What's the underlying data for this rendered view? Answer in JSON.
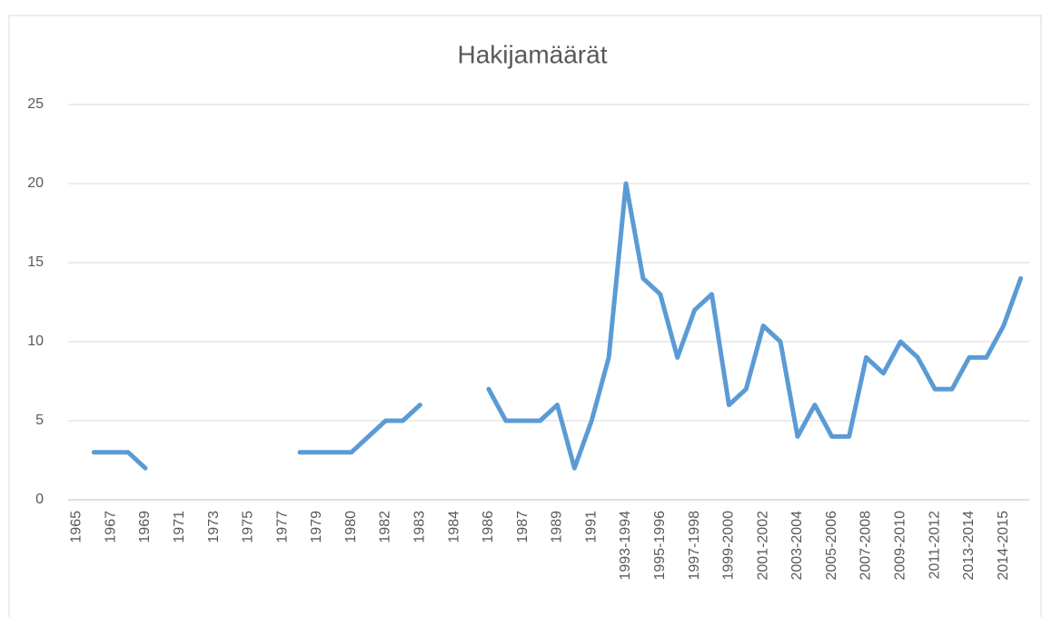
{
  "chart_data": {
    "type": "line",
    "title": "Hakijamäärät",
    "categories": [
      "1965",
      null,
      "1967",
      null,
      "1969",
      null,
      "1971",
      null,
      "1973",
      null,
      "1975",
      null,
      "1977",
      null,
      "1979",
      null,
      "1980",
      null,
      "1982",
      null,
      "1983",
      null,
      "1984",
      null,
      "1986",
      null,
      "1987",
      null,
      "1989",
      null,
      "1991",
      null,
      "1993-1994",
      null,
      "1995-1996",
      null,
      "1997-1998",
      null,
      "1999-2000",
      null,
      "2001-2002",
      null,
      "2003-2004",
      null,
      "2005-2006",
      null,
      "2007-2008",
      null,
      "2009-2010",
      null,
      "2011-2012",
      null,
      "2013-2014",
      null,
      "2014-2015",
      null
    ],
    "values": [
      null,
      3,
      3,
      3,
      2,
      null,
      null,
      null,
      null,
      null,
      null,
      null,
      null,
      3,
      3,
      3,
      3,
      4,
      5,
      5,
      6,
      null,
      null,
      null,
      7,
      5,
      5,
      5,
      6,
      2,
      5,
      9,
      20,
      14,
      13,
      9,
      12,
      13,
      6,
      7,
      11,
      10,
      4,
      6,
      4,
      4,
      9,
      8,
      10,
      9,
      7,
      7,
      9,
      9,
      11,
      14
    ],
    "color": "#5b9bd5",
    "ylim": [
      0,
      25
    ],
    "yticks": [
      0,
      5,
      10,
      15,
      20,
      25
    ],
    "grid": true
  }
}
